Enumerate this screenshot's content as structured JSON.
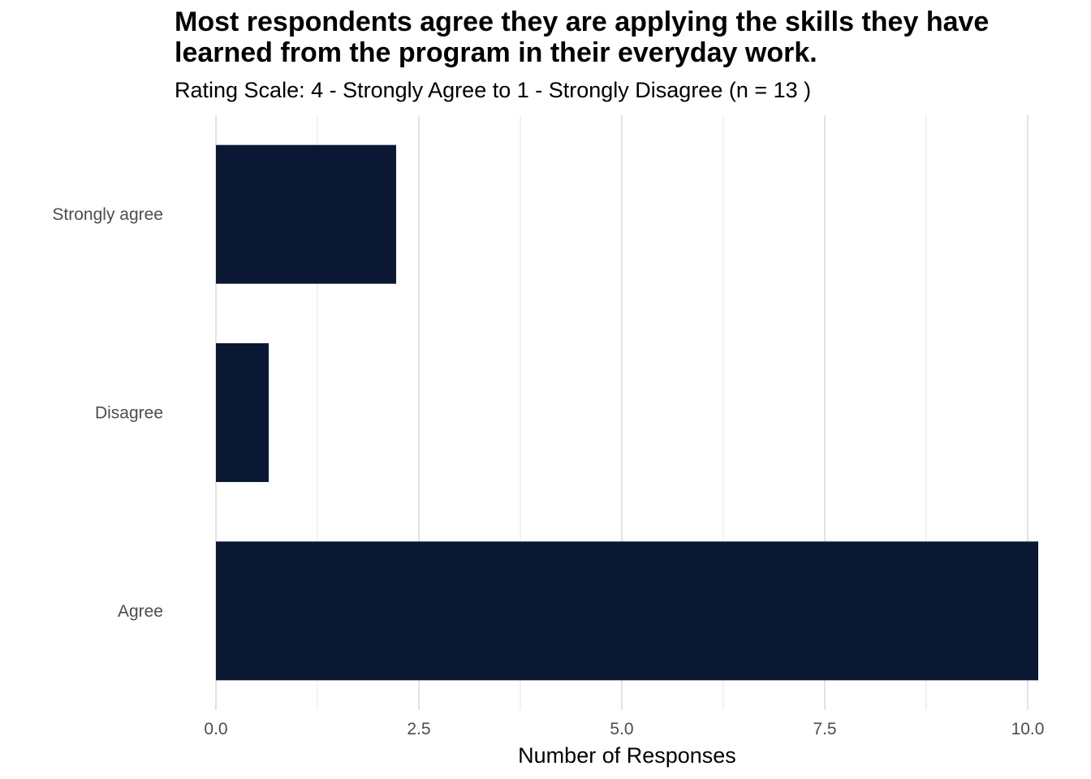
{
  "chart_data": {
    "type": "bar",
    "orientation": "horizontal",
    "title": "Most respondents agree they are applying the skills they have learned from the program in their everyday work.",
    "subtitle": "Rating Scale: 4 - Strongly Agree to 1 - Strongly Disagree (n = 13 )",
    "xlabel": "Number of Responses",
    "ylabel": "",
    "categories": [
      "Agree",
      "Disagree",
      "Strongly agree"
    ],
    "values": [
      10.13,
      0.65,
      2.22
    ],
    "xlim": [
      0,
      10.13
    ],
    "x_ticks": [
      "0.0",
      "2.5",
      "5.0",
      "7.5",
      "10.0"
    ],
    "x_tick_values": [
      0,
      2.5,
      5,
      7.5,
      10
    ],
    "x_minor_ticks": [
      1.25,
      3.75,
      6.25,
      8.75
    ],
    "bar_color": "#0a1833",
    "grid": true,
    "legend": "none"
  }
}
